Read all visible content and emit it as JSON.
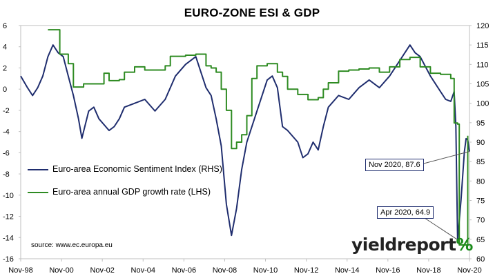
{
  "chart_data": {
    "type": "line",
    "title": "EURO-ZONE ESI & GDP",
    "x_ticks": [
      "Nov-98",
      "Nov-00",
      "Nov-02",
      "Nov-04",
      "Nov-06",
      "Nov-08",
      "Nov-10",
      "Nov-12",
      "Nov-14",
      "Nov-16",
      "Nov-18",
      "Nov-20"
    ],
    "y_left": {
      "ticks": [
        6,
        4,
        2,
        0,
        -2,
        -4,
        -6,
        -8,
        -10,
        -12,
        -14,
        -16
      ],
      "range": [
        -16,
        6
      ]
    },
    "y_right": {
      "ticks": [
        120,
        115,
        110,
        105,
        100,
        95,
        90,
        85,
        80,
        75,
        70,
        65,
        60
      ],
      "range": [
        60,
        120
      ]
    },
    "legend_position": "left",
    "series": [
      {
        "name": "Euro-area Economic Sentiment Index (RHS)",
        "axis": "right",
        "color": "#1f2d6e",
        "points": [
          [
            "1998-11",
            107
          ],
          [
            "1999-03",
            104
          ],
          [
            "1999-06",
            102
          ],
          [
            "1999-09",
            104
          ],
          [
            "1999-12",
            107
          ],
          [
            "2000-03",
            112
          ],
          [
            "2000-06",
            115
          ],
          [
            "2000-09",
            113
          ],
          [
            "2000-12",
            112
          ],
          [
            "2001-03",
            107
          ],
          [
            "2001-06",
            102
          ],
          [
            "2001-09",
            96
          ],
          [
            "2001-11",
            91
          ],
          [
            "2002-03",
            98
          ],
          [
            "2002-06",
            99
          ],
          [
            "2002-09",
            96
          ],
          [
            "2003-03",
            93
          ],
          [
            "2003-06",
            94
          ],
          [
            "2003-09",
            96
          ],
          [
            "2003-12",
            99
          ],
          [
            "2004-06",
            100
          ],
          [
            "2004-12",
            101
          ],
          [
            "2005-06",
            98
          ],
          [
            "2005-12",
            101
          ],
          [
            "2006-06",
            107
          ],
          [
            "2006-12",
            110
          ],
          [
            "2007-06",
            112
          ],
          [
            "2007-09",
            108
          ],
          [
            "2007-12",
            104
          ],
          [
            "2008-03",
            102
          ],
          [
            "2008-06",
            96
          ],
          [
            "2008-09",
            89
          ],
          [
            "2008-12",
            74
          ],
          [
            "2009-03",
            66
          ],
          [
            "2009-06",
            73
          ],
          [
            "2009-09",
            83
          ],
          [
            "2009-12",
            90
          ],
          [
            "2010-06",
            98
          ],
          [
            "2010-12",
            106
          ],
          [
            "2011-03",
            107
          ],
          [
            "2011-06",
            104
          ],
          [
            "2011-09",
            94
          ],
          [
            "2011-12",
            93
          ],
          [
            "2012-06",
            90
          ],
          [
            "2012-09",
            86
          ],
          [
            "2012-12",
            87
          ],
          [
            "2013-03",
            90
          ],
          [
            "2013-06",
            88
          ],
          [
            "2013-09",
            94
          ],
          [
            "2013-12",
            99
          ],
          [
            "2014-06",
            102
          ],
          [
            "2014-12",
            101
          ],
          [
            "2015-06",
            104
          ],
          [
            "2015-12",
            106
          ],
          [
            "2016-06",
            104
          ],
          [
            "2016-12",
            107
          ],
          [
            "2017-06",
            111
          ],
          [
            "2017-12",
            115
          ],
          [
            "2018-03",
            113
          ],
          [
            "2018-06",
            112
          ],
          [
            "2018-12",
            107
          ],
          [
            "2019-06",
            103
          ],
          [
            "2019-09",
            101
          ],
          [
            "2019-12",
            100.5
          ],
          [
            "2020-02",
            103
          ],
          [
            "2020-03",
            94
          ],
          [
            "2020-04",
            64.9
          ],
          [
            "2020-06",
            75
          ],
          [
            "2020-08",
            87.5
          ],
          [
            "2020-09",
            90.9
          ],
          [
            "2020-10",
            90.6
          ],
          [
            "2020-11",
            87.6
          ]
        ]
      },
      {
        "name": "Euro-area annual GDP growth rate (LHS)",
        "axis": "left",
        "color": "#2e8b22",
        "points": [
          [
            "2000-03",
            5.6
          ],
          [
            "2000-09",
            5.6
          ],
          [
            "2000-10",
            3.3
          ],
          [
            "2001-03",
            2.4
          ],
          [
            "2001-06",
            0.2
          ],
          [
            "2001-09",
            0.2
          ],
          [
            "2001-12",
            0.5
          ],
          [
            "2002-06",
            0.5
          ],
          [
            "2002-09",
            0.5
          ],
          [
            "2002-12",
            1.5
          ],
          [
            "2003-03",
            0.8
          ],
          [
            "2003-06",
            0.8
          ],
          [
            "2003-09",
            0.9
          ],
          [
            "2003-12",
            1.6
          ],
          [
            "2004-06",
            2.1
          ],
          [
            "2004-12",
            1.8
          ],
          [
            "2005-06",
            1.8
          ],
          [
            "2005-12",
            2.2
          ],
          [
            "2006-03",
            3.1
          ],
          [
            "2006-12",
            3.2
          ],
          [
            "2007-06",
            3.3
          ],
          [
            "2007-12",
            2.2
          ],
          [
            "2008-03",
            2.0
          ],
          [
            "2008-06",
            1.6
          ],
          [
            "2008-09",
            0.0
          ],
          [
            "2008-12",
            -2.0
          ],
          [
            "2009-03",
            -5.6
          ],
          [
            "2009-06",
            -5.0
          ],
          [
            "2009-09",
            -4.3
          ],
          [
            "2009-12",
            -2.5
          ],
          [
            "2010-03",
            1.0
          ],
          [
            "2010-06",
            2.2
          ],
          [
            "2010-12",
            2.4
          ],
          [
            "2011-06",
            1.6
          ],
          [
            "2011-09",
            1.2
          ],
          [
            "2011-12",
            0.0
          ],
          [
            "2012-06",
            -0.5
          ],
          [
            "2012-12",
            -1.0
          ],
          [
            "2013-06",
            -0.8
          ],
          [
            "2013-09",
            0.0
          ],
          [
            "2013-12",
            0.6
          ],
          [
            "2014-06",
            1.7
          ],
          [
            "2014-12",
            1.8
          ],
          [
            "2015-06",
            1.9
          ],
          [
            "2015-12",
            2.0
          ],
          [
            "2016-06",
            1.6
          ],
          [
            "2016-12",
            2.1
          ],
          [
            "2017-06",
            2.8
          ],
          [
            "2017-12",
            3.0
          ],
          [
            "2018-06",
            2.1
          ],
          [
            "2018-12",
            1.5
          ],
          [
            "2019-06",
            1.4
          ],
          [
            "2019-12",
            1.0
          ],
          [
            "2020-02",
            -3.2
          ],
          [
            "2020-04",
            -3.3
          ],
          [
            "2020-05",
            -14.7
          ],
          [
            "2020-09",
            -14.7
          ],
          [
            "2020-10",
            -4.4
          ]
        ]
      }
    ],
    "annotations": [
      {
        "text": "Nov 2020, 87.6",
        "date": "2020-11",
        "value": 87.6
      },
      {
        "text": "Apr 2020, 64.9",
        "date": "2020-04",
        "value": 64.9
      }
    ],
    "source": "source: www.ec.europa.eu"
  },
  "branding": {
    "logo_main": "yieldreport",
    "logo_symbol": "%"
  }
}
